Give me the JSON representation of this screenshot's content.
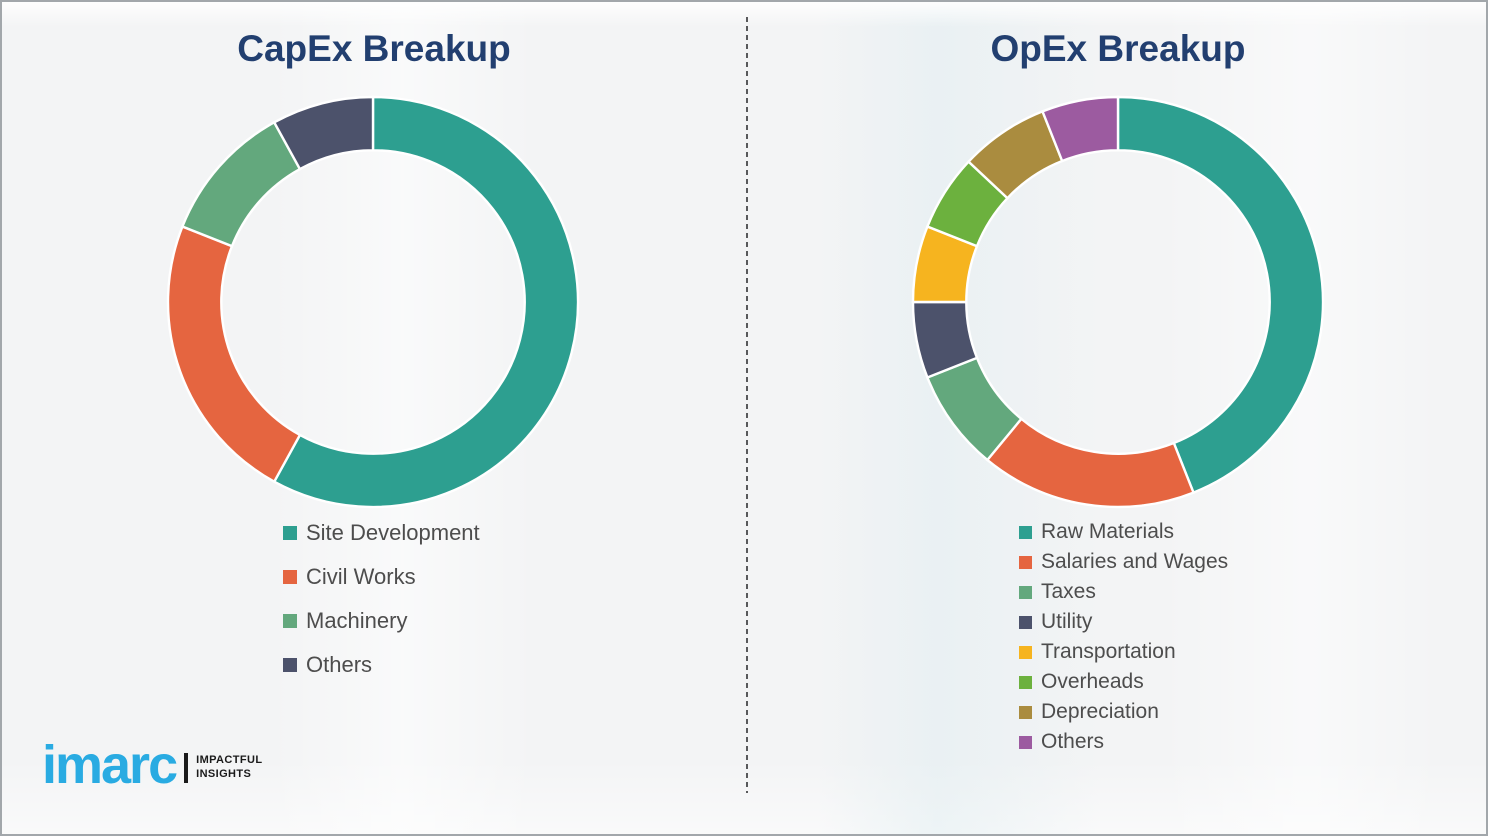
{
  "chart_data": [
    {
      "type": "pie",
      "subtype": "donut",
      "title": "CapEx Breakup",
      "labels": [
        "Site Development",
        "Civil Works",
        "Machinery",
        "Others"
      ],
      "values": [
        58,
        23,
        11,
        8
      ],
      "colors": [
        "#2D9F90",
        "#E56540",
        "#63A87D",
        "#4C526B"
      ],
      "start_angle_deg": 0,
      "direction": "clockwise",
      "inner_radius_ratio": 0.74,
      "legend_position": "below-left",
      "data_labels_shown": false
    },
    {
      "type": "pie",
      "subtype": "donut",
      "title": "OpEx Breakup",
      "labels": [
        "Raw Materials",
        "Salaries and Wages",
        "Taxes",
        "Utility",
        "Transportation",
        "Overheads",
        "Depreciation",
        "Others"
      ],
      "values": [
        44,
        17,
        8,
        6,
        6,
        6,
        7,
        6
      ],
      "colors": [
        "#2D9F90",
        "#E56540",
        "#63A87D",
        "#4C526B",
        "#F6B41F",
        "#6CB13E",
        "#AA8C3F",
        "#9C5BA0"
      ],
      "start_angle_deg": 0,
      "direction": "clockwise",
      "inner_radius_ratio": 0.74,
      "legend_position": "below-left",
      "data_labels_shown": false
    }
  ],
  "branding": {
    "logo_text": "imarc",
    "tagline_line1": "IMPACTFUL",
    "tagline_line2": "INSIGHTS",
    "logo_color": "#29ABE2"
  },
  "styles": {
    "title_color": "#223F70",
    "legend_text_color": "#4d4d4d",
    "background_color": "#f3f4f5",
    "divider_color": "#58595B"
  }
}
